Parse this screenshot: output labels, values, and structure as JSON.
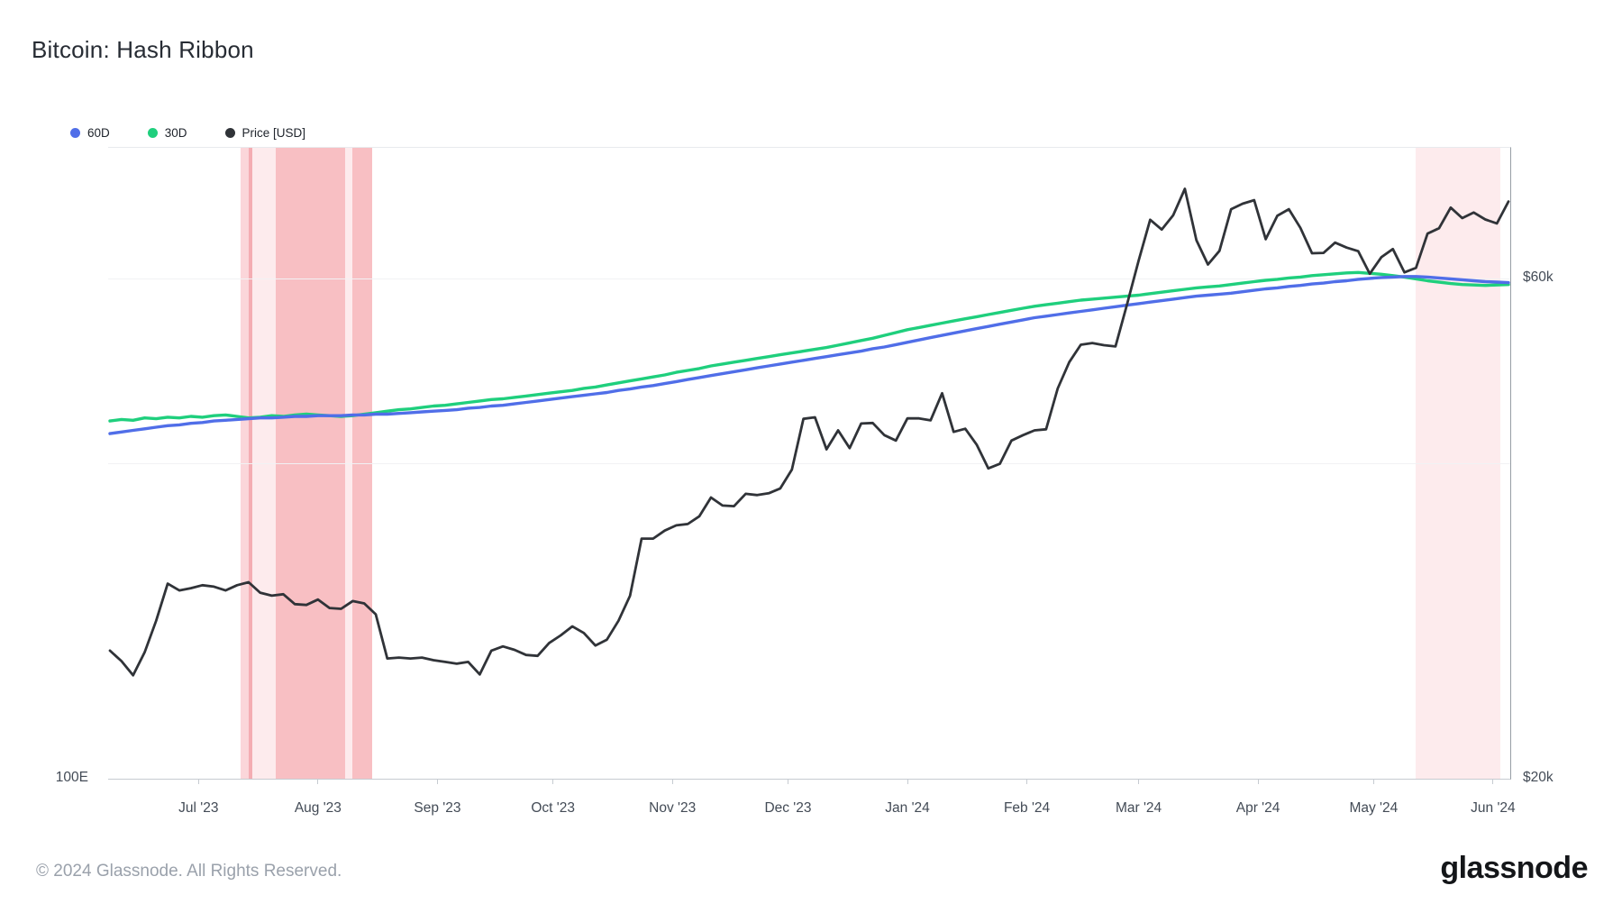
{
  "header": {
    "title": "Bitcoin: Hash Ribbon"
  },
  "legend": {
    "items": [
      {
        "label": "60D",
        "color": "#506ee8"
      },
      {
        "label": "30D",
        "color": "#1fcf7d"
      },
      {
        "label": "Price [USD]",
        "color": "#303338"
      }
    ]
  },
  "footer": {
    "copyright": "© 2024 Glassnode. All Rights Reserved.",
    "brand": "glassnode"
  },
  "chart_data": {
    "type": "line",
    "title": "Bitcoin: Hash Ribbon",
    "x_start_date": "2023-06-08",
    "x_end_date": "2024-06-05",
    "sample_interval_days": 3,
    "x_ticks": [
      {
        "label": "Jul '23",
        "date": "2023-07-01"
      },
      {
        "label": "Aug '23",
        "date": "2023-08-01"
      },
      {
        "label": "Sep '23",
        "date": "2023-09-01"
      },
      {
        "label": "Oct '23",
        "date": "2023-10-01"
      },
      {
        "label": "Nov '23",
        "date": "2023-11-01"
      },
      {
        "label": "Dec '23",
        "date": "2023-12-01"
      },
      {
        "label": "Jan '24",
        "date": "2024-01-01"
      },
      {
        "label": "Feb '24",
        "date": "2024-02-01"
      },
      {
        "label": "Mar '24",
        "date": "2024-03-01"
      },
      {
        "label": "Apr '24",
        "date": "2024-04-01"
      },
      {
        "label": "May '24",
        "date": "2024-05-01"
      },
      {
        "label": "Jun '24",
        "date": "2024-06-01"
      }
    ],
    "left_axis": {
      "unit": "EH/s",
      "scale": "log",
      "min": 104,
      "max": 966,
      "labels": [
        {
          "text": "100E",
          "value": 104
        }
      ]
    },
    "right_axis": {
      "unit": "USD",
      "scale": "log",
      "min": 20000,
      "max": 80000,
      "labels": [
        {
          "text": "$60k",
          "value": 60000
        },
        {
          "text": "$20k",
          "value": 20000
        }
      ]
    },
    "price_gridlines": [
      60000,
      40000
    ],
    "band_colors": {
      "verylight": "#fdebed",
      "light": "#fbd6da",
      "stripe": "#f4adb3",
      "medium": "#f8bfc3"
    },
    "highlight_bands": [
      {
        "from": "2023-07-12",
        "to": "2023-07-14",
        "shade": "light"
      },
      {
        "from": "2023-07-14",
        "to": "2023-07-15",
        "shade": "stripe"
      },
      {
        "from": "2023-07-15",
        "to": "2023-07-21",
        "shade": "verylight"
      },
      {
        "from": "2023-07-21",
        "to": "2023-08-08",
        "shade": "medium"
      },
      {
        "from": "2023-08-08",
        "to": "2023-08-10",
        "shade": "verylight"
      },
      {
        "from": "2023-08-10",
        "to": "2023-08-15",
        "shade": "medium"
      },
      {
        "from": "2024-05-12",
        "to": "2024-06-03",
        "shade": "verylight"
      }
    ],
    "series": [
      {
        "name": "30D",
        "axis": "left",
        "color": "#1fcf7d",
        "width": 3.4,
        "values": [
          368,
          370,
          369,
          372,
          371,
          373,
          372,
          374,
          373,
          375,
          376,
          374,
          372,
          373,
          375,
          374,
          376,
          377,
          376,
          375,
          374,
          375,
          377,
          379,
          381,
          383,
          384,
          386,
          388,
          389,
          391,
          393,
          395,
          397,
          398,
          400,
          402,
          404,
          406,
          408,
          410,
          413,
          415,
          418,
          421,
          424,
          427,
          430,
          433,
          437,
          440,
          443,
          447,
          450,
          453,
          456,
          459,
          462,
          465,
          468,
          471,
          474,
          477,
          481,
          485,
          489,
          493,
          498,
          503,
          508,
          512,
          516,
          520,
          524,
          528,
          532,
          536,
          540,
          544,
          548,
          552,
          555,
          558,
          561,
          564,
          566,
          568,
          570,
          572,
          574,
          577,
          580,
          583,
          586,
          589,
          591,
          593,
          596,
          599,
          602,
          605,
          607,
          610,
          612,
          615,
          617,
          619,
          621,
          622,
          620,
          618,
          615,
          612,
          608,
          604,
          601,
          598,
          596,
          595,
          594,
          595,
          596
        ]
      },
      {
        "name": "60D",
        "axis": "left",
        "color": "#506ee8",
        "width": 3.4,
        "values": [
          352,
          354,
          356,
          358,
          360,
          362,
          363,
          365,
          366,
          368,
          369,
          370,
          371,
          372,
          372,
          373,
          374,
          374,
          375,
          375,
          375,
          376,
          376,
          377,
          377,
          378,
          379,
          380,
          381,
          382,
          383,
          385,
          386,
          388,
          389,
          391,
          393,
          395,
          397,
          399,
          401,
          403,
          405,
          407,
          410,
          412,
          415,
          417,
          420,
          423,
          426,
          429,
          432,
          435,
          438,
          441,
          444,
          447,
          450,
          453,
          456,
          459,
          462,
          465,
          468,
          471,
          475,
          478,
          482,
          486,
          490,
          494,
          498,
          502,
          506,
          510,
          514,
          518,
          522,
          526,
          530,
          533,
          536,
          539,
          542,
          545,
          548,
          551,
          554,
          557,
          560,
          563,
          566,
          569,
          572,
          574,
          576,
          578,
          581,
          584,
          587,
          589,
          592,
          594,
          597,
          599,
          602,
          604,
          607,
          609,
          611,
          612,
          613,
          613,
          612,
          610,
          608,
          606,
          604,
          602,
          601,
          600
        ]
      },
      {
        "name": "Price [USD]",
        "axis": "right",
        "color": "#303338",
        "width": 2.8,
        "values": [
          26500,
          25900,
          25100,
          26400,
          28300,
          30700,
          30250,
          30400,
          30600,
          30500,
          30250,
          30600,
          30800,
          30100,
          29900,
          30000,
          29350,
          29300,
          29650,
          29100,
          29050,
          29550,
          29400,
          28700,
          26050,
          26100,
          26050,
          26100,
          25950,
          25850,
          25750,
          25850,
          25150,
          26500,
          26750,
          26550,
          26250,
          26200,
          26950,
          27400,
          27950,
          27550,
          26800,
          27150,
          28300,
          29900,
          33900,
          33900,
          34500,
          34900,
          35000,
          35600,
          37100,
          36450,
          36400,
          37400,
          37300,
          37450,
          37850,
          39450,
          44100,
          44250,
          41250,
          43000,
          41350,
          43650,
          43700,
          42550,
          42050,
          44150,
          44150,
          43950,
          46650,
          42850,
          43150,
          41650,
          39550,
          39950,
          42050,
          42550,
          43000,
          43100,
          47150,
          49950,
          51900,
          52100,
          51850,
          51700,
          56700,
          62450,
          68300,
          66850,
          69000,
          73100,
          65300,
          61900,
          63800,
          69900,
          70750,
          71300,
          65450,
          68900,
          69900,
          67100,
          63450,
          63500,
          64950,
          64250,
          63750,
          60650,
          62900,
          64050,
          60850,
          61450,
          66250,
          67050,
          70150,
          68550,
          69400,
          68350,
          67750,
          71100
        ]
      }
    ]
  }
}
